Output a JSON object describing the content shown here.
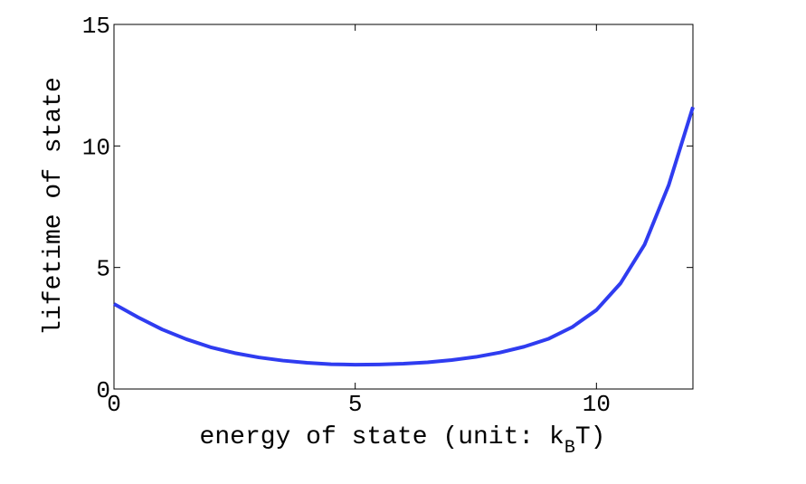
{
  "chart_data": {
    "type": "line",
    "xlabel": [
      "energy of state (unit: k",
      "B",
      "T)"
    ],
    "ylabel": "lifetime of state",
    "x": [
      0,
      0.5,
      1,
      1.5,
      2,
      2.5,
      3,
      3.5,
      4,
      4.5,
      5,
      5.5,
      6,
      6.5,
      7,
      7.5,
      8,
      8.5,
      9,
      9.5,
      10,
      10.5,
      11,
      11.5,
      12
    ],
    "series": [
      {
        "name": "lifetime",
        "color": "#2f3cf0",
        "values": [
          3.5,
          2.95,
          2.45,
          2.05,
          1.72,
          1.48,
          1.3,
          1.17,
          1.08,
          1.02,
          1.0,
          1.01,
          1.04,
          1.1,
          1.19,
          1.32,
          1.5,
          1.74,
          2.06,
          2.55,
          3.25,
          4.35,
          5.95,
          8.4,
          11.6
        ]
      }
    ],
    "xlim": [
      0,
      12
    ],
    "xticks": [
      0,
      5,
      10
    ],
    "ylim": [
      0,
      15
    ],
    "yticks": [
      0,
      5,
      10,
      15
    ],
    "grid": false
  }
}
